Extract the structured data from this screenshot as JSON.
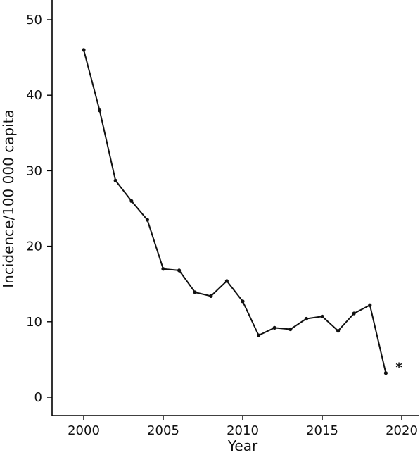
{
  "chart_data": {
    "type": "line",
    "title": "",
    "xlabel": "Year",
    "ylabel": "Incidence/100 000 capita",
    "xlim": [
      1998,
      2020
    ],
    "ylim": [
      0,
      50
    ],
    "x_ticks": [
      2000,
      2005,
      2010,
      2015,
      2020
    ],
    "y_ticks": [
      0,
      10,
      20,
      30,
      40,
      50
    ],
    "x_tick_labels": [
      "2000",
      "2005",
      "2010",
      "2015",
      "2020"
    ],
    "y_tick_labels": [
      "0",
      "10",
      "20",
      "30",
      "40",
      "50"
    ],
    "grid": false,
    "series": [
      {
        "color": "#111111",
        "x": [
          2000,
          2001,
          2002,
          2003,
          2004,
          2005,
          2006,
          2007,
          2008,
          2009,
          2010,
          2011,
          2012,
          2013,
          2014,
          2015,
          2016,
          2017,
          2018,
          2019
        ],
        "y": [
          46.0,
          38.0,
          28.7,
          26.0,
          23.5,
          17.0,
          16.8,
          13.9,
          13.4,
          15.4,
          12.7,
          8.2,
          9.2,
          9.0,
          10.4,
          10.7,
          8.8,
          11.1,
          12.2,
          3.2
        ]
      }
    ],
    "annotations": [
      {
        "text": "*",
        "x": 2019,
        "y": 3.2
      }
    ]
  }
}
